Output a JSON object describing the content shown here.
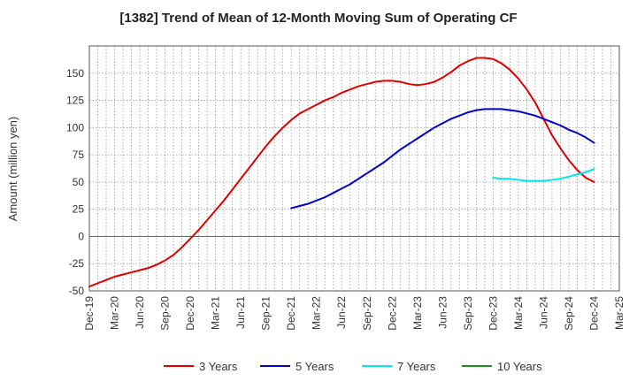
{
  "chart_data": {
    "type": "line",
    "title": "[1382]  Trend of Mean of 12-Month Moving Sum of Operating CF",
    "xlabel": "",
    "ylabel": "Amount (million yen)",
    "ylim": [
      -50,
      175
    ],
    "yticks": [
      -50,
      -25,
      0,
      25,
      50,
      75,
      100,
      125,
      150
    ],
    "grid": true,
    "legend_position": "bottom",
    "x_ticks": [
      "Dec-19",
      "Mar-20",
      "Jun-20",
      "Sep-20",
      "Dec-20",
      "Mar-21",
      "Jun-21",
      "Sep-21",
      "Dec-21",
      "Mar-22",
      "Jun-22",
      "Sep-22",
      "Dec-22",
      "Mar-23",
      "Jun-23",
      "Sep-23",
      "Dec-23",
      "Mar-24",
      "Jun-24",
      "Sep-24",
      "Dec-24",
      "Mar-25"
    ],
    "series": [
      {
        "name": "3 Years",
        "color": "#e00000",
        "start": "Dec-19",
        "values": [
          -46,
          -43,
          -40,
          -37,
          -35,
          -33,
          -31,
          -29,
          -26,
          -22,
          -17,
          -10,
          -2,
          6,
          15,
          24,
          33,
          43,
          53,
          63,
          73,
          83,
          92,
          100,
          107,
          113,
          117,
          121,
          125,
          128,
          132,
          135,
          138,
          140,
          142,
          143,
          143,
          142,
          140,
          139,
          140,
          142,
          146,
          151,
          157,
          161,
          164,
          164,
          163,
          159,
          153,
          145,
          135,
          123,
          108,
          93,
          81,
          70,
          61,
          54,
          50
        ]
      },
      {
        "name": "5 Years",
        "color": "#0000cc",
        "start": "Dec-21",
        "values": [
          26,
          28,
          30,
          33,
          36,
          40,
          44,
          48,
          53,
          58,
          63,
          68,
          74,
          80,
          85,
          90,
          95,
          100,
          104,
          108,
          111,
          114,
          116,
          117,
          117,
          117,
          116,
          115,
          113,
          111,
          108,
          105,
          102,
          98,
          95,
          91,
          86
        ]
      },
      {
        "name": "7 Years",
        "color": "#00e5ee",
        "start": "Dec-23",
        "values": [
          54,
          53,
          53,
          52,
          51,
          51,
          51,
          52,
          53,
          55,
          57,
          59,
          62
        ]
      },
      {
        "name": "10 Years",
        "color": "#228b22",
        "start": "Dec-19",
        "values": []
      }
    ]
  }
}
